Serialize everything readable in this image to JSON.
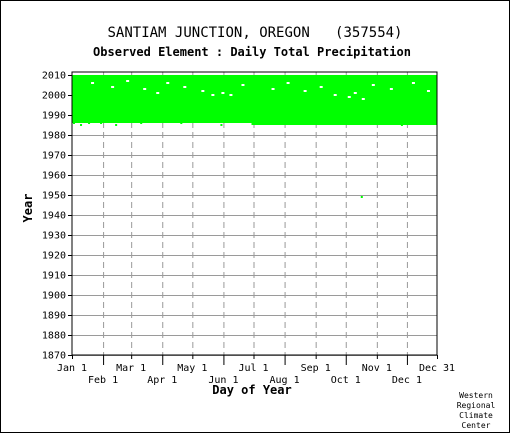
{
  "title": "SANTIAM JUNCTION, OREGON   (357554)",
  "subtitle": "Observed Element : Daily Total Precipitation",
  "credit": [
    "Western",
    "Regional",
    "Climate",
    "Center"
  ],
  "colors": {
    "data": "#00ff00",
    "grid": "#9a9a9a",
    "axis": "#000000",
    "background": "#ffffff"
  },
  "chart_data": {
    "type": "scatter",
    "title": "SANTIAM JUNCTION, OREGON   (357554)",
    "subtitle": "Observed Element : Daily Total Precipitation",
    "xlabel": "Day of Year",
    "ylabel": "Year",
    "xlim": [
      1,
      365
    ],
    "ylim": [
      1870,
      2012
    ],
    "grid": true,
    "y_ticks": [
      1870,
      1880,
      1890,
      1900,
      1910,
      1920,
      1930,
      1940,
      1950,
      1960,
      1970,
      1980,
      1990,
      2000,
      2010
    ],
    "x_ticks": [
      {
        "day": 1,
        "label": "Jan 1",
        "row": 0
      },
      {
        "day": 32,
        "label": "Feb 1",
        "row": 1
      },
      {
        "day": 60,
        "label": "Mar 1",
        "row": 0
      },
      {
        "day": 91,
        "label": "Apr 1",
        "row": 1
      },
      {
        "day": 121,
        "label": "May 1",
        "row": 0
      },
      {
        "day": 152,
        "label": "Jun 1",
        "row": 1
      },
      {
        "day": 182,
        "label": "Jul 1",
        "row": 0
      },
      {
        "day": 213,
        "label": "Aug 1",
        "row": 1
      },
      {
        "day": 244,
        "label": "Sep 1",
        "row": 0
      },
      {
        "day": 274,
        "label": "Oct 1",
        "row": 1
      },
      {
        "day": 305,
        "label": "Nov 1",
        "row": 0
      },
      {
        "day": 335,
        "label": "Dec 1",
        "row": 1
      },
      {
        "day": 365,
        "label": "Dec 31",
        "row": 0
      }
    ],
    "series": [
      {
        "color": "#00ff00",
        "blocks": [
          {
            "day_start": 1,
            "day_end": 365,
            "year_start": 1986,
            "year_end": 2010
          },
          {
            "day_start": 180,
            "day_end": 365,
            "year_start": 1985,
            "year_end": 1986
          }
        ],
        "points": [
          {
            "day": 3,
            "year": 1986
          },
          {
            "day": 6,
            "year": 1987
          },
          {
            "day": 10,
            "year": 1985
          },
          {
            "day": 18,
            "year": 1986
          },
          {
            "day": 30,
            "year": 1986
          },
          {
            "day": 45,
            "year": 1985
          },
          {
            "day": 70,
            "year": 1986
          },
          {
            "day": 110,
            "year": 1986
          },
          {
            "day": 150,
            "year": 1985
          },
          {
            "day": 290,
            "year": 1949
          },
          {
            "day": 330,
            "year": 1985
          },
          {
            "day": 338,
            "year": 1986
          }
        ],
        "gaps": [
          {
            "day": 20,
            "year": 2006
          },
          {
            "day": 40,
            "year": 2004
          },
          {
            "day": 55,
            "year": 2007
          },
          {
            "day": 72,
            "year": 2003
          },
          {
            "day": 85,
            "year": 2001
          },
          {
            "day": 95,
            "year": 2006
          },
          {
            "day": 112,
            "year": 2004
          },
          {
            "day": 130,
            "year": 2002
          },
          {
            "day": 140,
            "year": 2000
          },
          {
            "day": 150,
            "year": 2001
          },
          {
            "day": 158,
            "year": 2000
          },
          {
            "day": 170,
            "year": 2005
          },
          {
            "day": 200,
            "year": 2003
          },
          {
            "day": 215,
            "year": 2006
          },
          {
            "day": 232,
            "year": 2002
          },
          {
            "day": 248,
            "year": 2004
          },
          {
            "day": 262,
            "year": 2000
          },
          {
            "day": 276,
            "year": 1999
          },
          {
            "day": 282,
            "year": 2001
          },
          {
            "day": 290,
            "year": 1998
          },
          {
            "day": 300,
            "year": 2005
          },
          {
            "day": 318,
            "year": 2003
          },
          {
            "day": 340,
            "year": 2006
          },
          {
            "day": 355,
            "year": 2002
          }
        ]
      }
    ]
  }
}
